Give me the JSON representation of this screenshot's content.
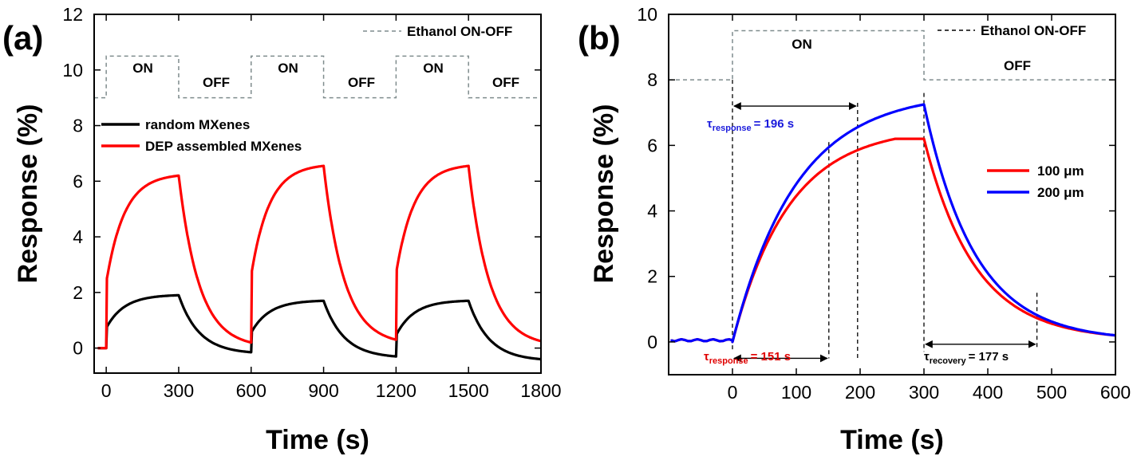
{
  "chart_data": [
    {
      "type": "line",
      "panel_label": "(a)",
      "xlabel": "Time (s)",
      "ylabel": "Response (%)",
      "xlim": [
        -50,
        1800
      ],
      "ylim": [
        -0.9,
        12
      ],
      "xticks": [
        0,
        300,
        600,
        900,
        1200,
        1500,
        1800
      ],
      "yticks": [
        0,
        2,
        4,
        6,
        8,
        10,
        12
      ],
      "legend": {
        "placement": "left-middle",
        "entries": [
          "random MXenes",
          "DEP assembled MXenes"
        ]
      },
      "ethanol_legend": "Ethanol ON-OFF",
      "state_labels": [
        "ON",
        "OFF",
        "ON",
        "OFF",
        "ON",
        "OFF"
      ],
      "series": [
        {
          "name": "random MXenes",
          "color": "#000000",
          "cycles": [
            {
              "on": 0,
              "off": 300,
              "base": 0.0,
              "peak": 1.9,
              "end": -0.15
            },
            {
              "on": 600,
              "off": 900,
              "base": -0.15,
              "peak": 1.7,
              "end": -0.3
            },
            {
              "on": 1200,
              "off": 1500,
              "base": -0.3,
              "peak": 1.7,
              "end": -0.4
            }
          ]
        },
        {
          "name": "DEP assembled MXenes",
          "color": "#ff0000",
          "cycles": [
            {
              "on": 0,
              "off": 300,
              "base": 0.0,
              "peak": 6.2,
              "end": 0.2
            },
            {
              "on": 600,
              "off": 900,
              "base": 0.2,
              "peak": 6.55,
              "end": 0.3
            },
            {
              "on": 1200,
              "off": 1500,
              "base": 0.3,
              "peak": 6.55,
              "end": 0.25
            }
          ]
        }
      ]
    },
    {
      "type": "line",
      "panel_label": "(b)",
      "xlabel": "Time (s)",
      "ylabel": "Response (%)",
      "xlim": [
        -100,
        600
      ],
      "ylim": [
        -1,
        10
      ],
      "xticks": [
        0,
        100,
        200,
        300,
        400,
        500,
        600
      ],
      "yticks": [
        0,
        2,
        4,
        6,
        8,
        10
      ],
      "legend": {
        "placement": "right-middle",
        "entries": [
          "100 μm",
          "200 μm"
        ]
      },
      "ethanol_legend": "Ethanol ON-OFF",
      "state_labels": [
        "ON",
        "OFF"
      ],
      "series": [
        {
          "name": "100 μm",
          "color": "#ff0000",
          "on": 0,
          "off": 300,
          "peak": 6.2,
          "end": 0.2
        },
        {
          "name": "200 μm",
          "color": "#0000ff",
          "on": 0,
          "off": 300,
          "peak": 7.25,
          "end": 0.2
        }
      ],
      "annotations": [
        {
          "tau": "τ",
          "sub": "response",
          "value": "= 196 s",
          "color": "#1a1adc",
          "from": 0,
          "to": 196
        },
        {
          "tau": "τ",
          "sub": "response",
          "value": "= 151 s",
          "color": "#e00000",
          "from": 0,
          "to": 151
        },
        {
          "tau": "τ",
          "sub": "recovery",
          "value": "= 177 s",
          "color": "#000000",
          "from": 300,
          "to": 477
        }
      ]
    }
  ]
}
